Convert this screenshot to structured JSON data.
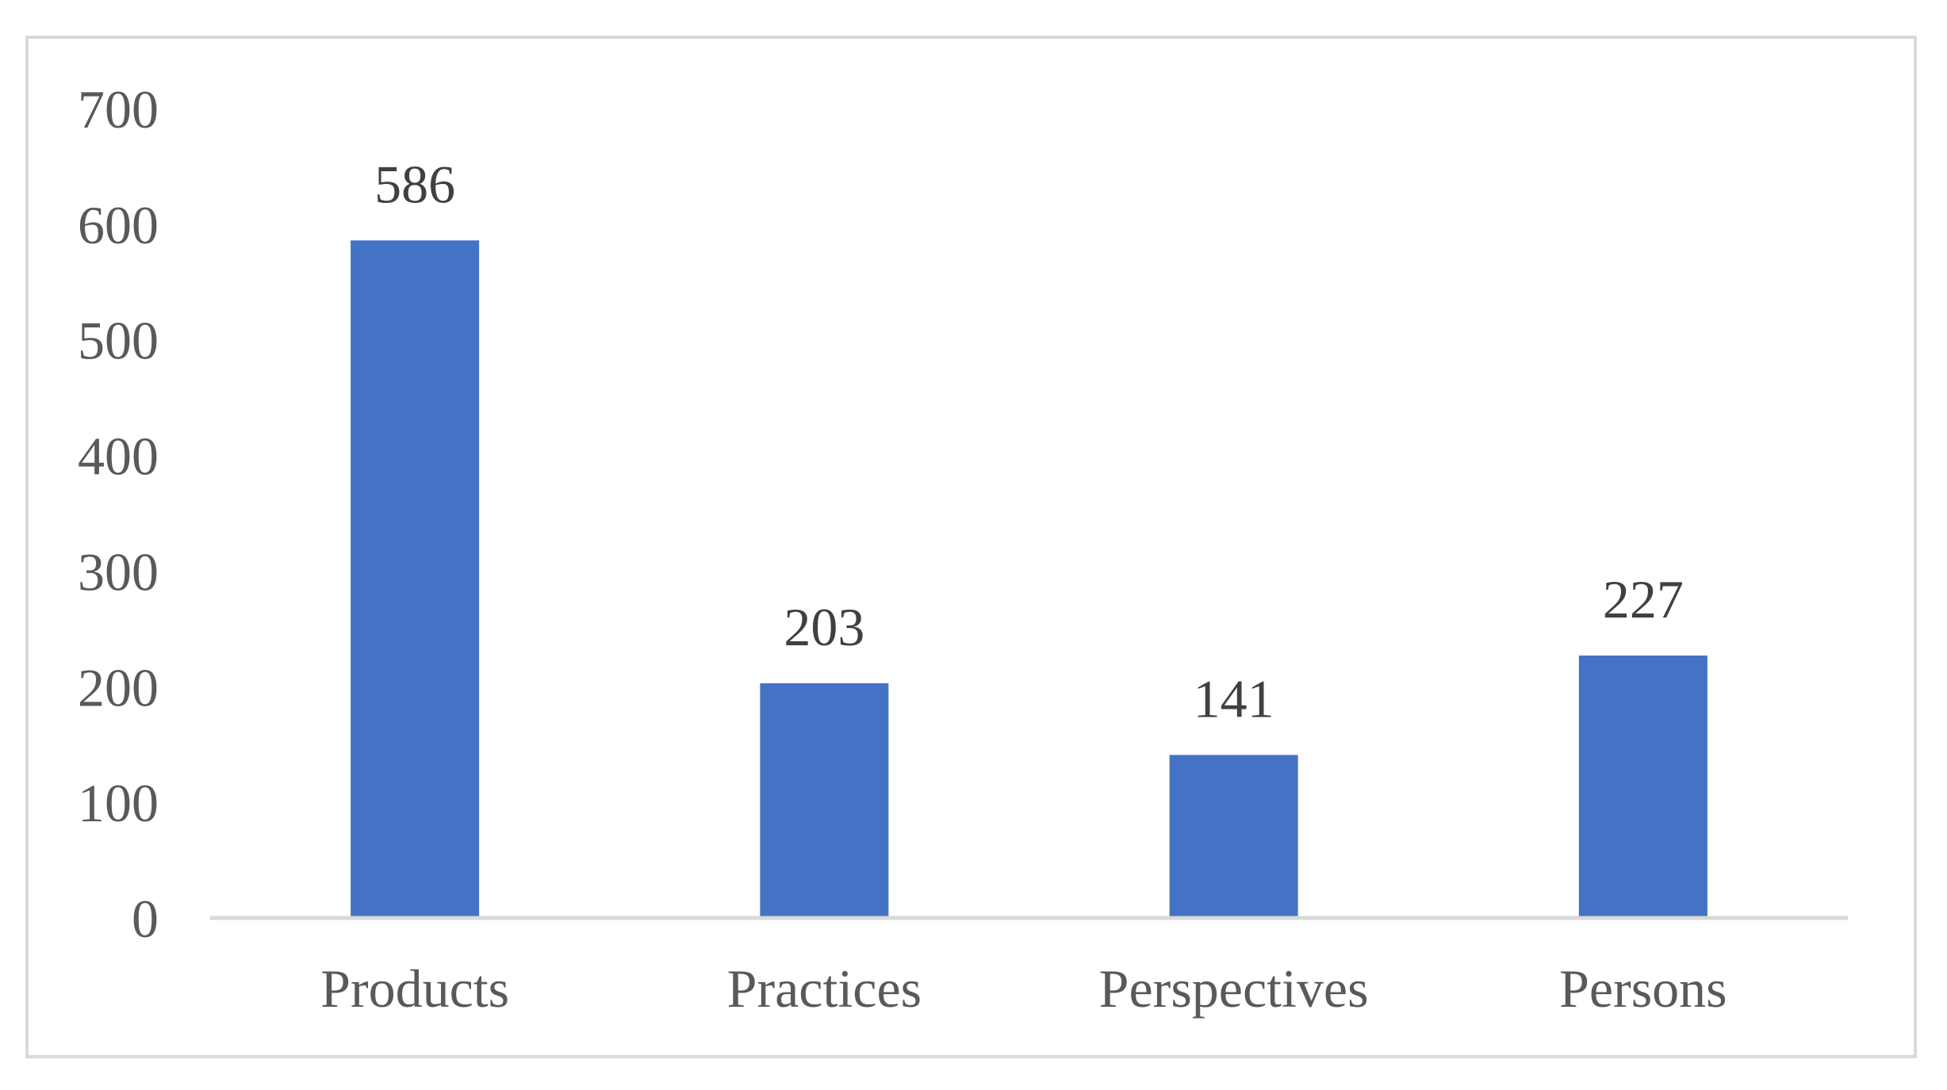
{
  "chart_data": {
    "type": "bar",
    "categories": [
      "Products",
      "Practices",
      "Perspectives",
      "Persons"
    ],
    "values": [
      586,
      203,
      141,
      227
    ],
    "title": "",
    "xlabel": "",
    "ylabel": "",
    "ylim": [
      0,
      700
    ],
    "yticks": [
      0,
      100,
      200,
      300,
      400,
      500,
      600,
      700
    ],
    "data_labels": [
      "586",
      "203",
      "141",
      "227"
    ],
    "grid": false,
    "legend": "none",
    "bar_color": "#4472c4",
    "axis_color": "#d9d9d9",
    "frame_color": "#d9d9d9"
  }
}
